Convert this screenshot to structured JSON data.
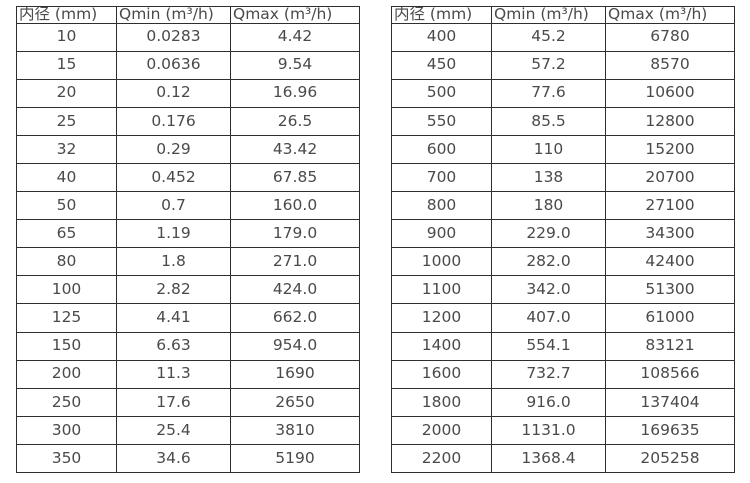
{
  "page": {
    "background": "#ffffff",
    "text_color": "#4a4a4a",
    "border_color": "#2e2e2e"
  },
  "tables": [
    {
      "name": "small-diameter-flow-table",
      "headers": [
        "内径 (mm)",
        "Qmin (m³/h)",
        "Qmax (m³/h)"
      ],
      "rows": [
        [
          "10",
          "0.0283",
          "4.42"
        ],
        [
          "15",
          "0.0636",
          "9.54"
        ],
        [
          "20",
          "0.12",
          "16.96"
        ],
        [
          "25",
          "0.176",
          "26.5"
        ],
        [
          "32",
          "0.29",
          "43.42"
        ],
        [
          "40",
          "0.452",
          "67.85"
        ],
        [
          "50",
          "0.7",
          "160.0"
        ],
        [
          "65",
          "1.19",
          "179.0"
        ],
        [
          "80",
          "1.8",
          "271.0"
        ],
        [
          "100",
          "2.82",
          "424.0"
        ],
        [
          "125",
          "4.41",
          "662.0"
        ],
        [
          "150",
          "6.63",
          "954.0"
        ],
        [
          "200",
          "11.3",
          "1690"
        ],
        [
          "250",
          "17.6",
          "2650"
        ],
        [
          "300",
          "25.4",
          "3810"
        ],
        [
          "350",
          "34.6",
          "5190"
        ]
      ]
    },
    {
      "name": "large-diameter-flow-table",
      "headers": [
        "内径 (mm)",
        "Qmin (m³/h)",
        "Qmax (m³/h)"
      ],
      "rows": [
        [
          "400",
          "45.2",
          "6780"
        ],
        [
          "450",
          "57.2",
          "8570"
        ],
        [
          "500",
          "77.6",
          "10600"
        ],
        [
          "550",
          "85.5",
          "12800"
        ],
        [
          "600",
          "110",
          "15200"
        ],
        [
          "700",
          "138",
          "20700"
        ],
        [
          "800",
          "180",
          "27100"
        ],
        [
          "900",
          "229.0",
          "34300"
        ],
        [
          "1000",
          "282.0",
          "42400"
        ],
        [
          "1100",
          "342.0",
          "51300"
        ],
        [
          "1200",
          "407.0",
          "61000"
        ],
        [
          "1400",
          "554.1",
          "83121"
        ],
        [
          "1600",
          "732.7",
          "108566"
        ],
        [
          "1800",
          "916.0",
          "137404"
        ],
        [
          "2000",
          "1131.0",
          "169635"
        ],
        [
          "2200",
          "1368.4",
          "205258"
        ]
      ]
    }
  ]
}
